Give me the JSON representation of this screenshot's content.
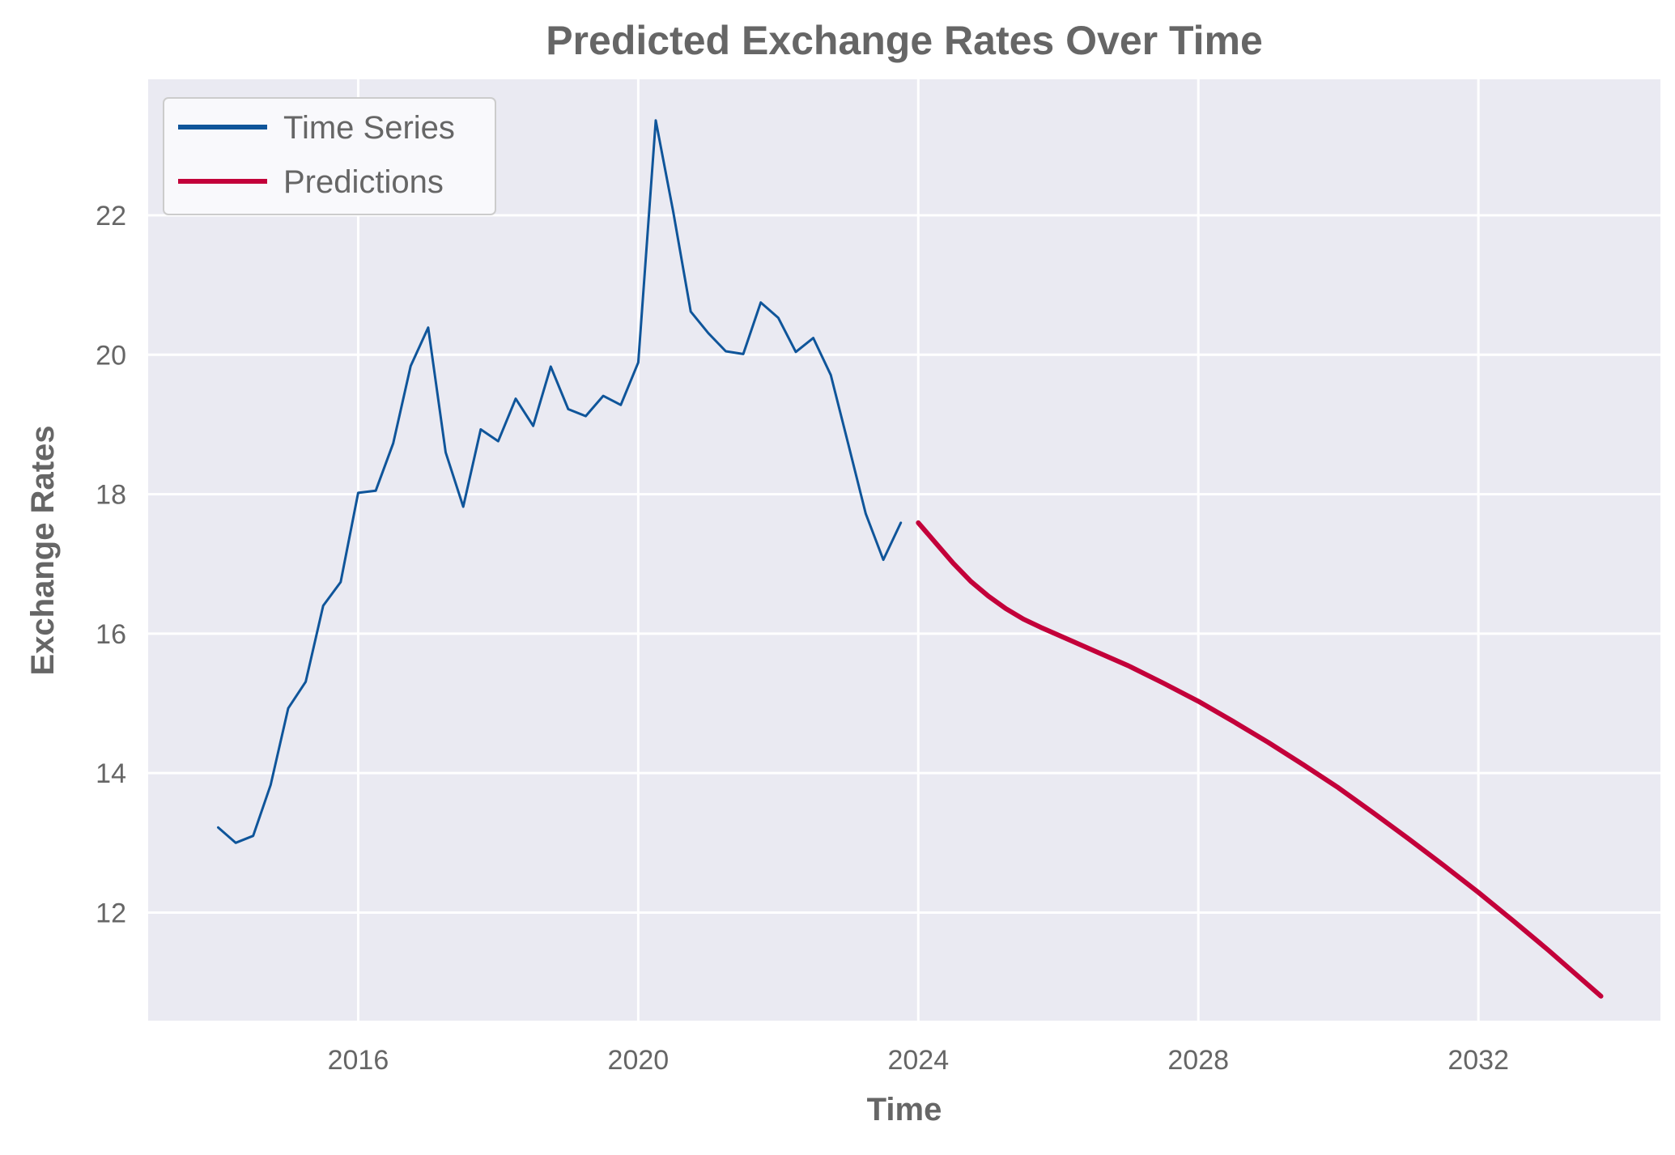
{
  "chart_data": {
    "type": "line",
    "title": "Predicted Exchange Rates Over Time",
    "xlabel": "Time",
    "ylabel": "Exchange Rates",
    "xlim": [
      2013.0,
      2034.6
    ],
    "ylim": [
      10.45,
      23.95
    ],
    "x_ticks": [
      2016,
      2020,
      2024,
      2028,
      2032
    ],
    "x_tick_labels": [
      "2016",
      "2020",
      "2024",
      "2028",
      "2032"
    ],
    "y_ticks": [
      12,
      14,
      16,
      18,
      20,
      22
    ],
    "y_tick_labels": [
      "12",
      "14",
      "16",
      "18",
      "20",
      "22"
    ],
    "grid": true,
    "legend_position": "top-left",
    "colors": {
      "background": "#eaeaf2",
      "grid": "#ffffff",
      "time_series": "#0f559a",
      "predictions": "#c3003a"
    },
    "series": [
      {
        "name": "Time Series",
        "x": [
          2014.0,
          2014.25,
          2014.5,
          2014.75,
          2015.0,
          2015.25,
          2015.5,
          2015.75,
          2016.0,
          2016.25,
          2016.5,
          2016.75,
          2017.0,
          2017.25,
          2017.5,
          2017.75,
          2018.0,
          2018.25,
          2018.5,
          2018.75,
          2019.0,
          2019.25,
          2019.5,
          2019.75,
          2020.0,
          2020.25,
          2020.5,
          2020.75,
          2021.0,
          2021.25,
          2021.5,
          2021.75,
          2022.0,
          2022.25,
          2022.5,
          2022.75,
          2023.0,
          2023.25,
          2023.5,
          2023.75
        ],
        "values": [
          13.22,
          13.0,
          13.1,
          13.83,
          14.93,
          15.31,
          16.4,
          16.74,
          18.02,
          18.05,
          18.73,
          19.84,
          20.39,
          18.6,
          17.82,
          18.93,
          18.76,
          19.37,
          18.98,
          19.83,
          19.22,
          19.12,
          19.41,
          19.28,
          19.89,
          23.36,
          22.05,
          20.62,
          20.31,
          20.05,
          20.01,
          20.75,
          20.53,
          20.04,
          20.24,
          19.71,
          18.72,
          17.72,
          17.06,
          17.59
        ]
      },
      {
        "name": "Predictions",
        "x": [
          2024.0,
          2024.25,
          2024.5,
          2024.75,
          2025.0,
          2025.25,
          2025.5,
          2025.75,
          2026.0,
          2026.5,
          2027.0,
          2027.5,
          2028.0,
          2028.5,
          2029.0,
          2029.5,
          2030.0,
          2030.5,
          2031.0,
          2031.5,
          2032.0,
          2032.5,
          2033.0,
          2033.5,
          2033.75
        ],
        "values": [
          17.59,
          17.3,
          17.01,
          16.75,
          16.54,
          16.36,
          16.21,
          16.09,
          15.98,
          15.76,
          15.54,
          15.29,
          15.03,
          14.74,
          14.44,
          14.12,
          13.79,
          13.43,
          13.06,
          12.68,
          12.29,
          11.88,
          11.46,
          11.02,
          10.8
        ]
      }
    ]
  }
}
